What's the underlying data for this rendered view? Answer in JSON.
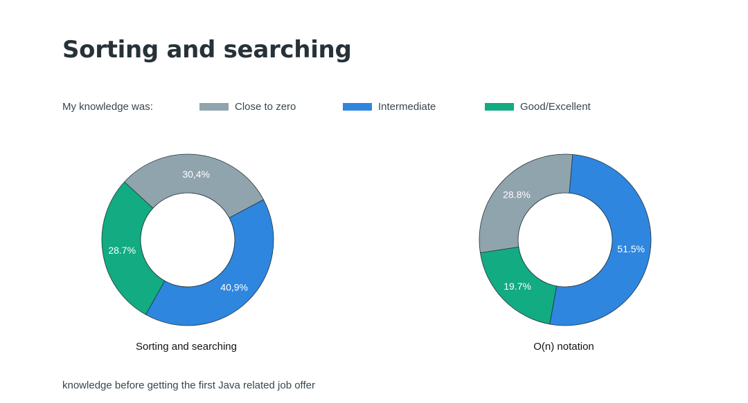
{
  "title": "Sorting and searching",
  "legend": {
    "label": "My knowledge was:",
    "items": [
      {
        "name": "Close to zero",
        "color": "#90a4ae"
      },
      {
        "name": "Intermediate",
        "color": "#2e86de"
      },
      {
        "name": "Good/Excellent",
        "color": "#12ab82"
      }
    ]
  },
  "chart_data": [
    {
      "type": "pie",
      "donut": true,
      "caption": "Sorting and searching",
      "slices": [
        {
          "name": "Intermediate",
          "value": 40.9,
          "label": "40,9%",
          "color": "#2e86de"
        },
        {
          "name": "Good/Excellent",
          "value": 28.7,
          "label": "28.7%",
          "color": "#12ab82"
        },
        {
          "name": "Close to zero",
          "value": 30.4,
          "label": "30,4%",
          "color": "#90a4ae"
        }
      ]
    },
    {
      "type": "pie",
      "donut": true,
      "caption": "O(n) notation",
      "slices": [
        {
          "name": "Intermediate",
          "value": 51.5,
          "label": "51.5%",
          "color": "#2e86de"
        },
        {
          "name": "Good/Excellent",
          "value": 19.7,
          "label": "19.7%",
          "color": "#12ab82"
        },
        {
          "name": "Close to zero",
          "value": 28.8,
          "label": "28.8%",
          "color": "#90a4ae"
        }
      ]
    }
  ],
  "footnote": "knowledge before getting the first Java related job offer"
}
